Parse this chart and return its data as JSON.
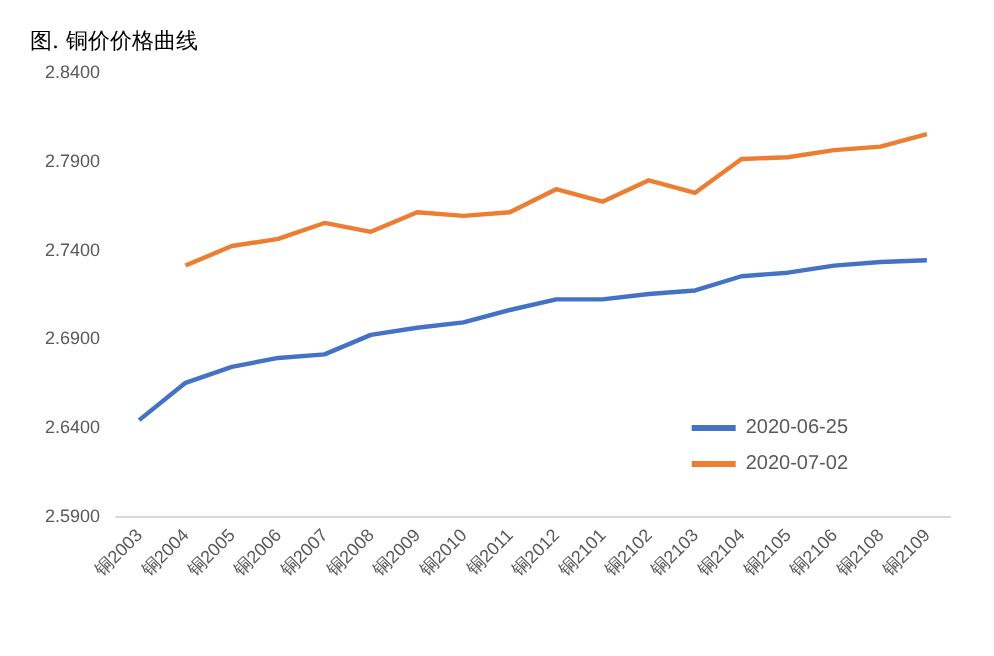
{
  "chart_data": {
    "type": "line",
    "title": "图. 铜价价格曲线",
    "categories": [
      "铜2003",
      "铜2004",
      "铜2005",
      "铜2006",
      "铜2007",
      "铜2008",
      "铜2009",
      "铜2010",
      "铜2011",
      "铜2012",
      "铜2101",
      "铜2102",
      "铜2103",
      "铜2104",
      "铜2105",
      "铜2106",
      "铜2108",
      "铜2109"
    ],
    "series": [
      {
        "name": "2020-06-25",
        "color": "#4472c4",
        "values": [
          2.644,
          2.665,
          2.674,
          2.679,
          2.681,
          2.692,
          2.696,
          2.699,
          2.706,
          2.712,
          2.712,
          2.715,
          2.717,
          2.725,
          2.727,
          2.731,
          2.733,
          2.734
        ]
      },
      {
        "name": "2020-07-02",
        "color": "#ed7d31",
        "values": [
          null,
          2.731,
          2.742,
          2.746,
          2.755,
          2.75,
          2.761,
          2.759,
          2.761,
          2.774,
          2.767,
          2.779,
          2.772,
          2.791,
          2.792,
          2.796,
          2.798,
          2.805
        ]
      }
    ],
    "ylim": [
      2.59,
      2.84
    ],
    "yticks": [
      {
        "value": 2.59,
        "label": "2.5900"
      },
      {
        "value": 2.64,
        "label": "2.6400"
      },
      {
        "value": 2.69,
        "label": "2.6900"
      },
      {
        "value": 2.74,
        "label": "2.7400"
      },
      {
        "value": 2.79,
        "label": "2.7900"
      },
      {
        "value": 2.84,
        "label": "2.8400"
      }
    ],
    "grid": false,
    "legend": "bottom right",
    "marker": "none",
    "line_style": "solid"
  }
}
